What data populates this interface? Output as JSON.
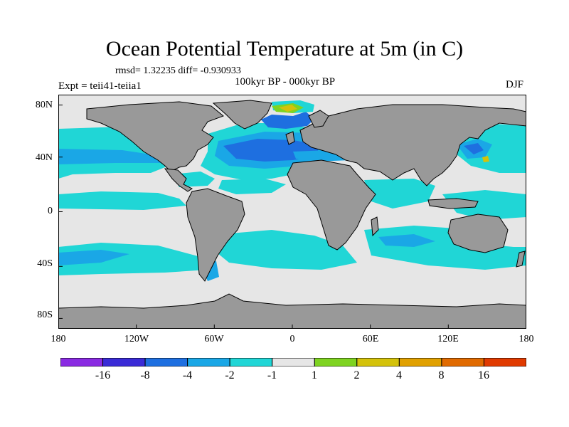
{
  "title": "Ocean Potential Temperature at 5m (in C)",
  "stats": "rmsd= 1.32235 diff= -0.930933",
  "experiment": "Expt = teii41-teiia1",
  "period": "100kyr BP - 000kyr BP",
  "season": "DJF",
  "axes": {
    "y_ticks": [
      {
        "label": "80N",
        "value": 80
      },
      {
        "label": "40N",
        "value": 40
      },
      {
        "label": "0",
        "value": 0
      },
      {
        "label": "40S",
        "value": -40
      },
      {
        "label": "80S",
        "value": -80
      }
    ],
    "x_ticks": [
      {
        "label": "180",
        "value": -180
      },
      {
        "label": "120W",
        "value": -120
      },
      {
        "label": "60W",
        "value": -60
      },
      {
        "label": "0",
        "value": 0
      },
      {
        "label": "60E",
        "value": 60
      },
      {
        "label": "120E",
        "value": 120
      },
      {
        "label": "180",
        "value": 180
      }
    ]
  },
  "colorbar": {
    "colors": [
      "#8a2be2",
      "#3a2bd6",
      "#1e6fe0",
      "#1aa7e6",
      "#20d6d6",
      "#e6e6e6",
      "#7ed321",
      "#d4c20a",
      "#e0a000",
      "#e06a00",
      "#e03a00"
    ],
    "labels": [
      "-16",
      "-8",
      "-4",
      "-2",
      "-1",
      "1",
      "2",
      "4",
      "8",
      "16"
    ]
  },
  "map_colors": {
    "land": "#999999",
    "ocean_neutral": "#e6e6e6",
    "cyan": "#20d6d6",
    "light_blue": "#1aa7e6",
    "blue": "#1e6fe0",
    "green": "#7ed321",
    "yellow": "#d4c20a"
  }
}
